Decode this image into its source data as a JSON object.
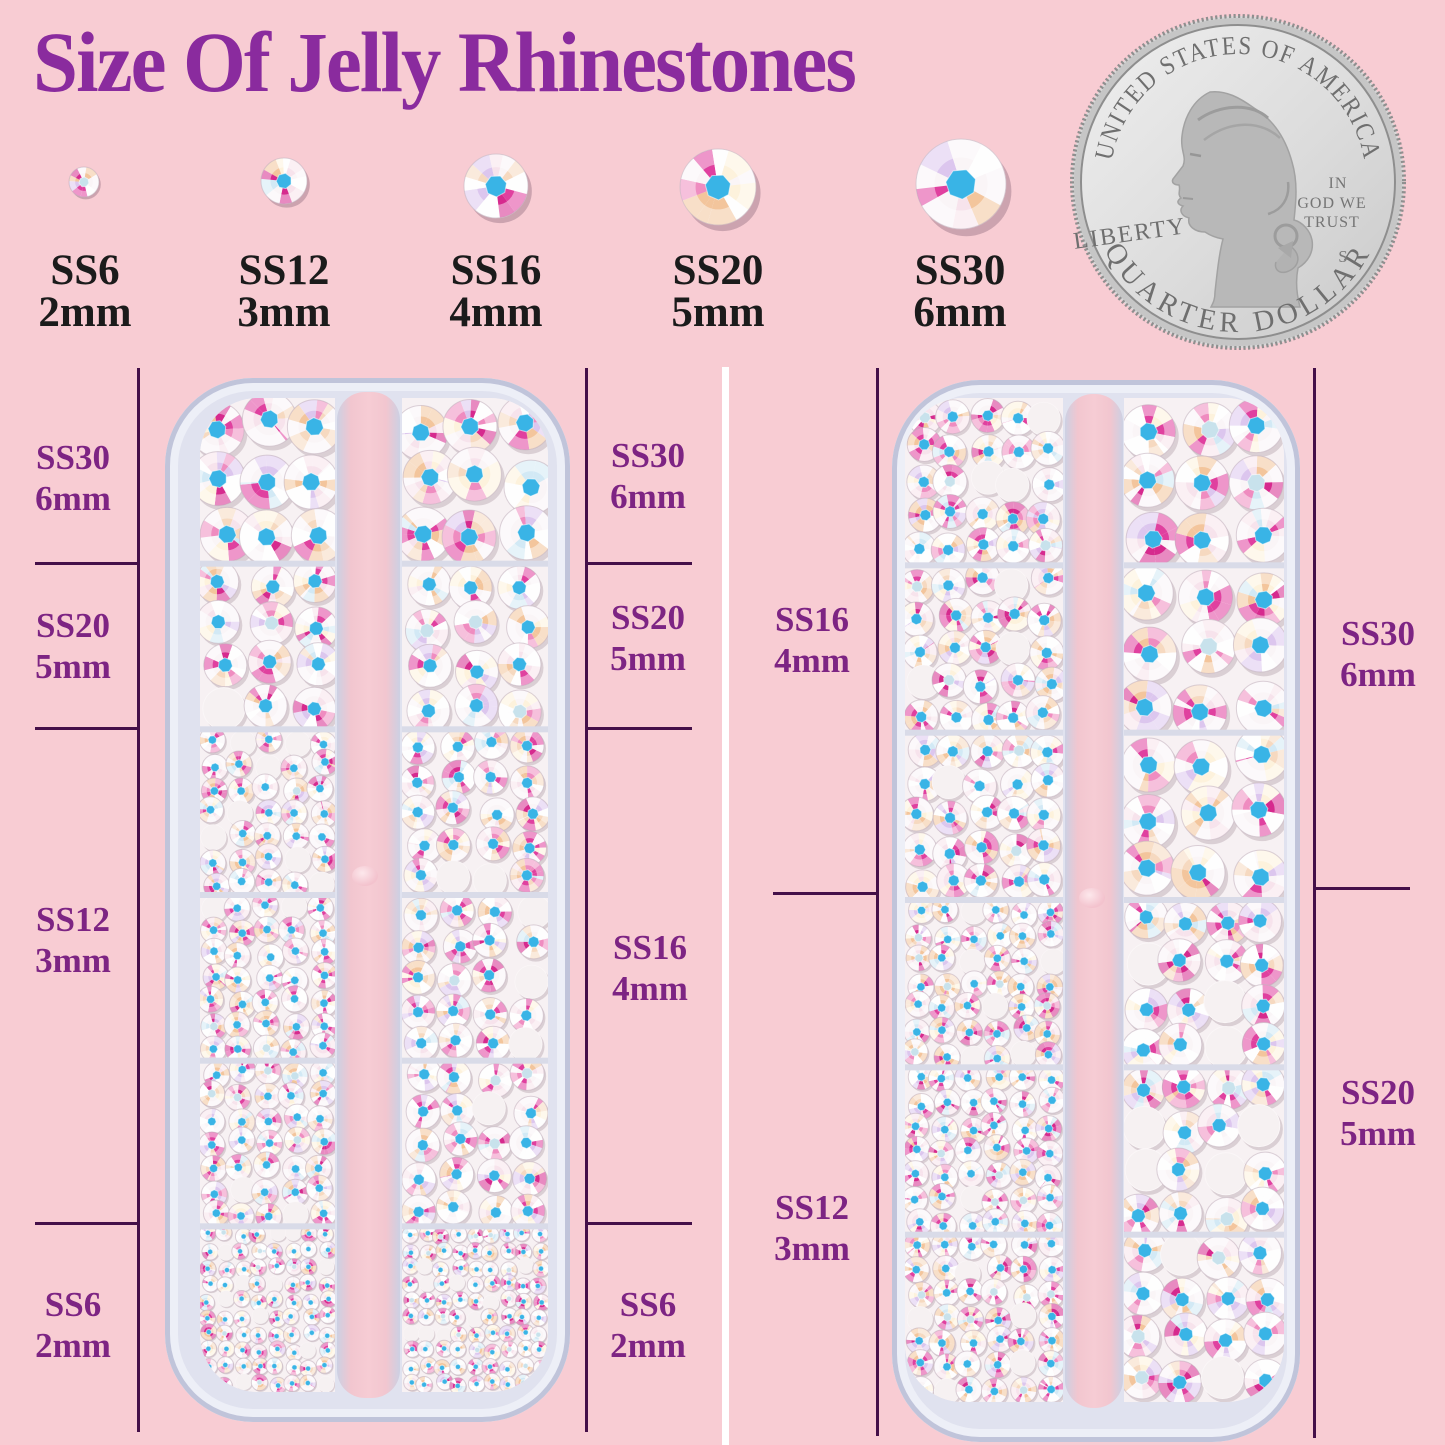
{
  "title": "Size Of Jelly Rhinestones",
  "samples": [
    {
      "code": "SS6",
      "mm": "2mm"
    },
    {
      "code": "SS12",
      "mm": "3mm"
    },
    {
      "code": "SS16",
      "mm": "4mm"
    },
    {
      "code": "SS20",
      "mm": "5mm"
    },
    {
      "code": "SS30",
      "mm": "6mm"
    }
  ],
  "left_box": {
    "outer": [
      {
        "code": "SS30",
        "mm": "6mm"
      },
      {
        "code": "SS20",
        "mm": "5mm"
      },
      {
        "code": "SS12",
        "mm": "3mm"
      },
      {
        "code": "SS6",
        "mm": "2mm"
      }
    ],
    "inner": [
      {
        "code": "SS30",
        "mm": "6mm"
      },
      {
        "code": "SS20",
        "mm": "5mm"
      },
      {
        "code": "SS16",
        "mm": "4mm"
      },
      {
        "code": "SS6",
        "mm": "2mm"
      }
    ]
  },
  "right_box": {
    "inner": [
      {
        "code": "SS16",
        "mm": "4mm"
      },
      {
        "code": "SS12",
        "mm": "3mm"
      }
    ],
    "outer": [
      {
        "code": "SS30",
        "mm": "6mm"
      },
      {
        "code": "SS20",
        "mm": "5mm"
      }
    ]
  },
  "coin": {
    "top_text": "UNITED STATES OF AMERICA",
    "bottom_text": "QUARTER DOLLAR",
    "liberty": "LIBERTY",
    "motto_line1": "IN",
    "motto_line2": "GOD WE",
    "motto_line3": "TRUST",
    "mint_mark": "S"
  },
  "colors": {
    "background": "#f8ccd3",
    "title": "#8a2b9e",
    "side_label": "#7d2483",
    "sample_label": "#1b1b1b",
    "bracket_line": "#451049",
    "divider_stripe": "#ffffff",
    "stone_center_cyan": "#39b4e6",
    "stone_magenta": "#d6399b",
    "box_plastic": "#c0c4da",
    "compartment_fill": "#f7f1f3",
    "coin_silver": "#d6d6d6"
  }
}
